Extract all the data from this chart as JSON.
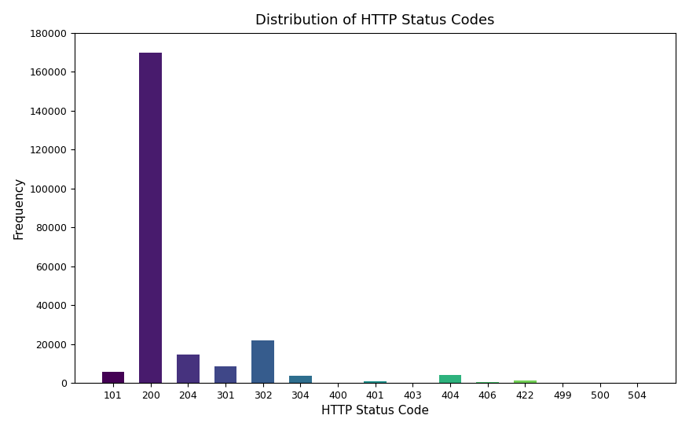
{
  "categories": [
    "101",
    "200",
    "204",
    "301",
    "302",
    "304",
    "400",
    "401",
    "403",
    "404",
    "406",
    "422",
    "499",
    "500",
    "504"
  ],
  "values": [
    5500,
    170000,
    14500,
    8500,
    22000,
    3500,
    150,
    700,
    200,
    4200,
    500,
    1100,
    50,
    30,
    20
  ],
  "title": "Distribution of HTTP Status Codes",
  "xlabel": "HTTP Status Code",
  "ylabel": "Frequency",
  "ylim": [
    0,
    180000
  ],
  "yticks": [
    0,
    20000,
    40000,
    60000,
    80000,
    100000,
    120000,
    140000,
    160000,
    180000
  ],
  "colormap": "viridis",
  "background_color": "#ffffff",
  "figsize": [
    8.77,
    5.47
  ],
  "dpi": 100,
  "bar_width": 0.6,
  "title_fontsize": 13,
  "axis_label_fontsize": 11,
  "tick_fontsize": 9
}
